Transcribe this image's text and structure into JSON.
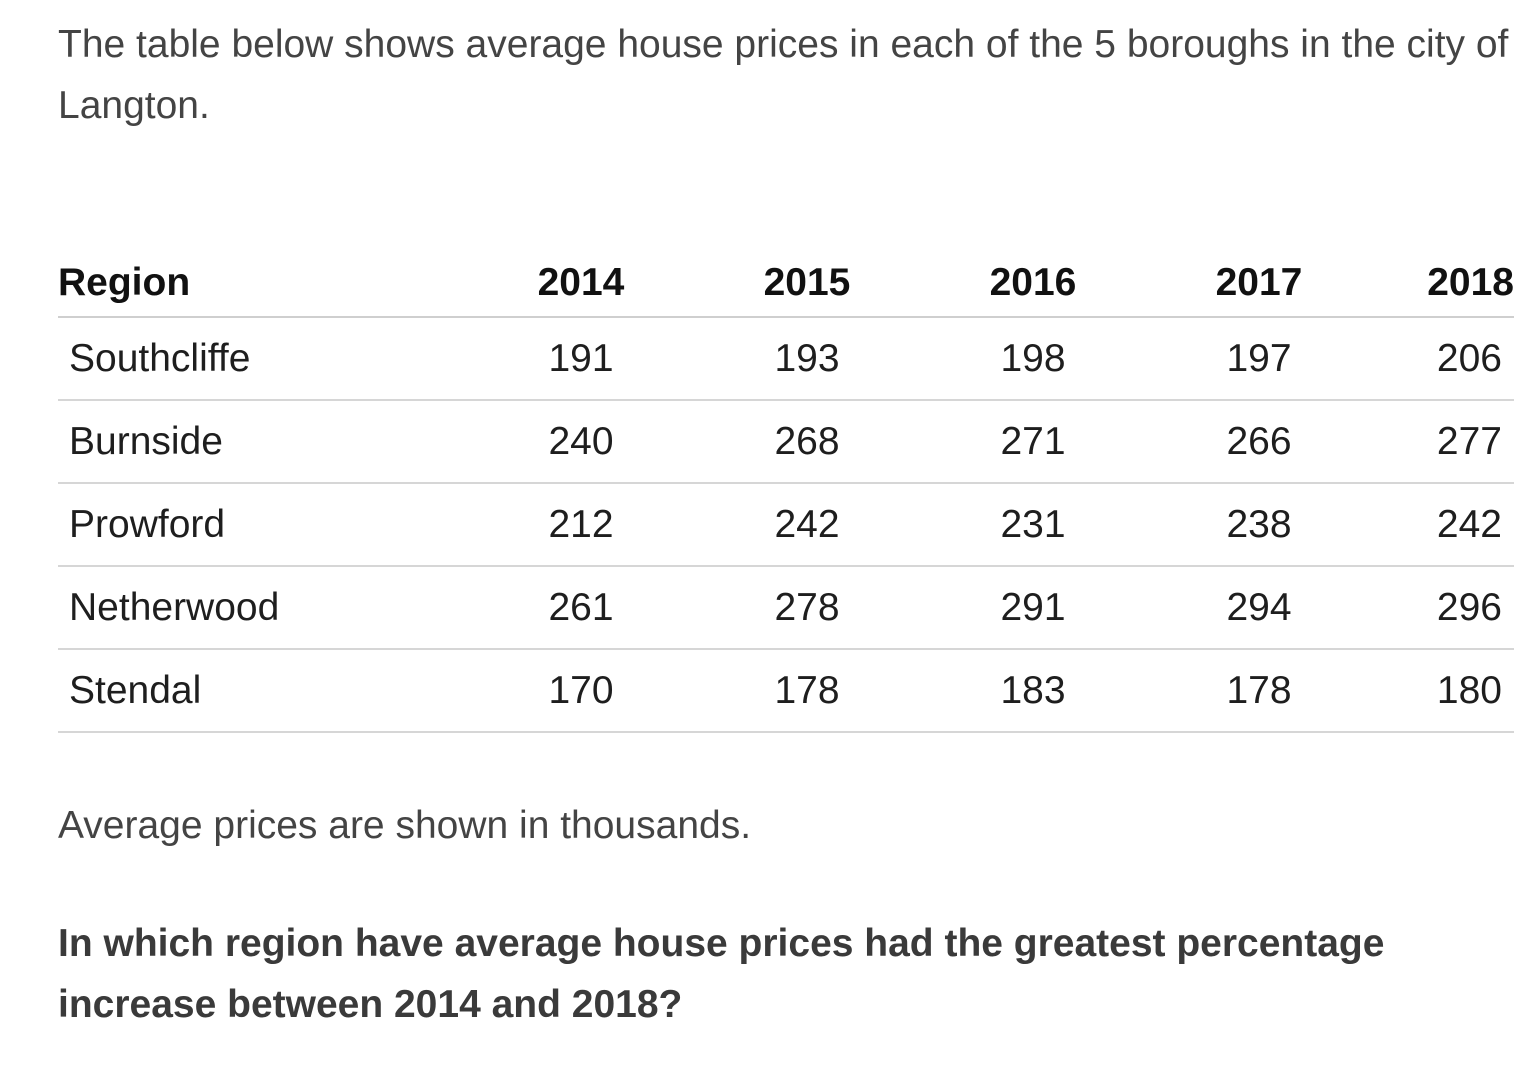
{
  "intro": "The table below shows average house prices in each of the 5 boroughs in the city of Langton.",
  "table": {
    "headers": [
      "Region",
      "2014",
      "2015",
      "2016",
      "2017",
      "2018"
    ],
    "rows": [
      [
        "Southcliffe",
        "191",
        "193",
        "198",
        "197",
        "206"
      ],
      [
        "Burnside",
        "240",
        "268",
        "271",
        "266",
        "277"
      ],
      [
        "Prowford",
        "212",
        "242",
        "231",
        "238",
        "242"
      ],
      [
        "Netherwood",
        "261",
        "278",
        "291",
        "294",
        "296"
      ],
      [
        "Stendal",
        "170",
        "178",
        "183",
        "178",
        "180"
      ]
    ]
  },
  "note": "Average prices are shown in thousands.",
  "question": "In which region have average house prices had the greatest percentage increase between 2014 and 2018?"
}
